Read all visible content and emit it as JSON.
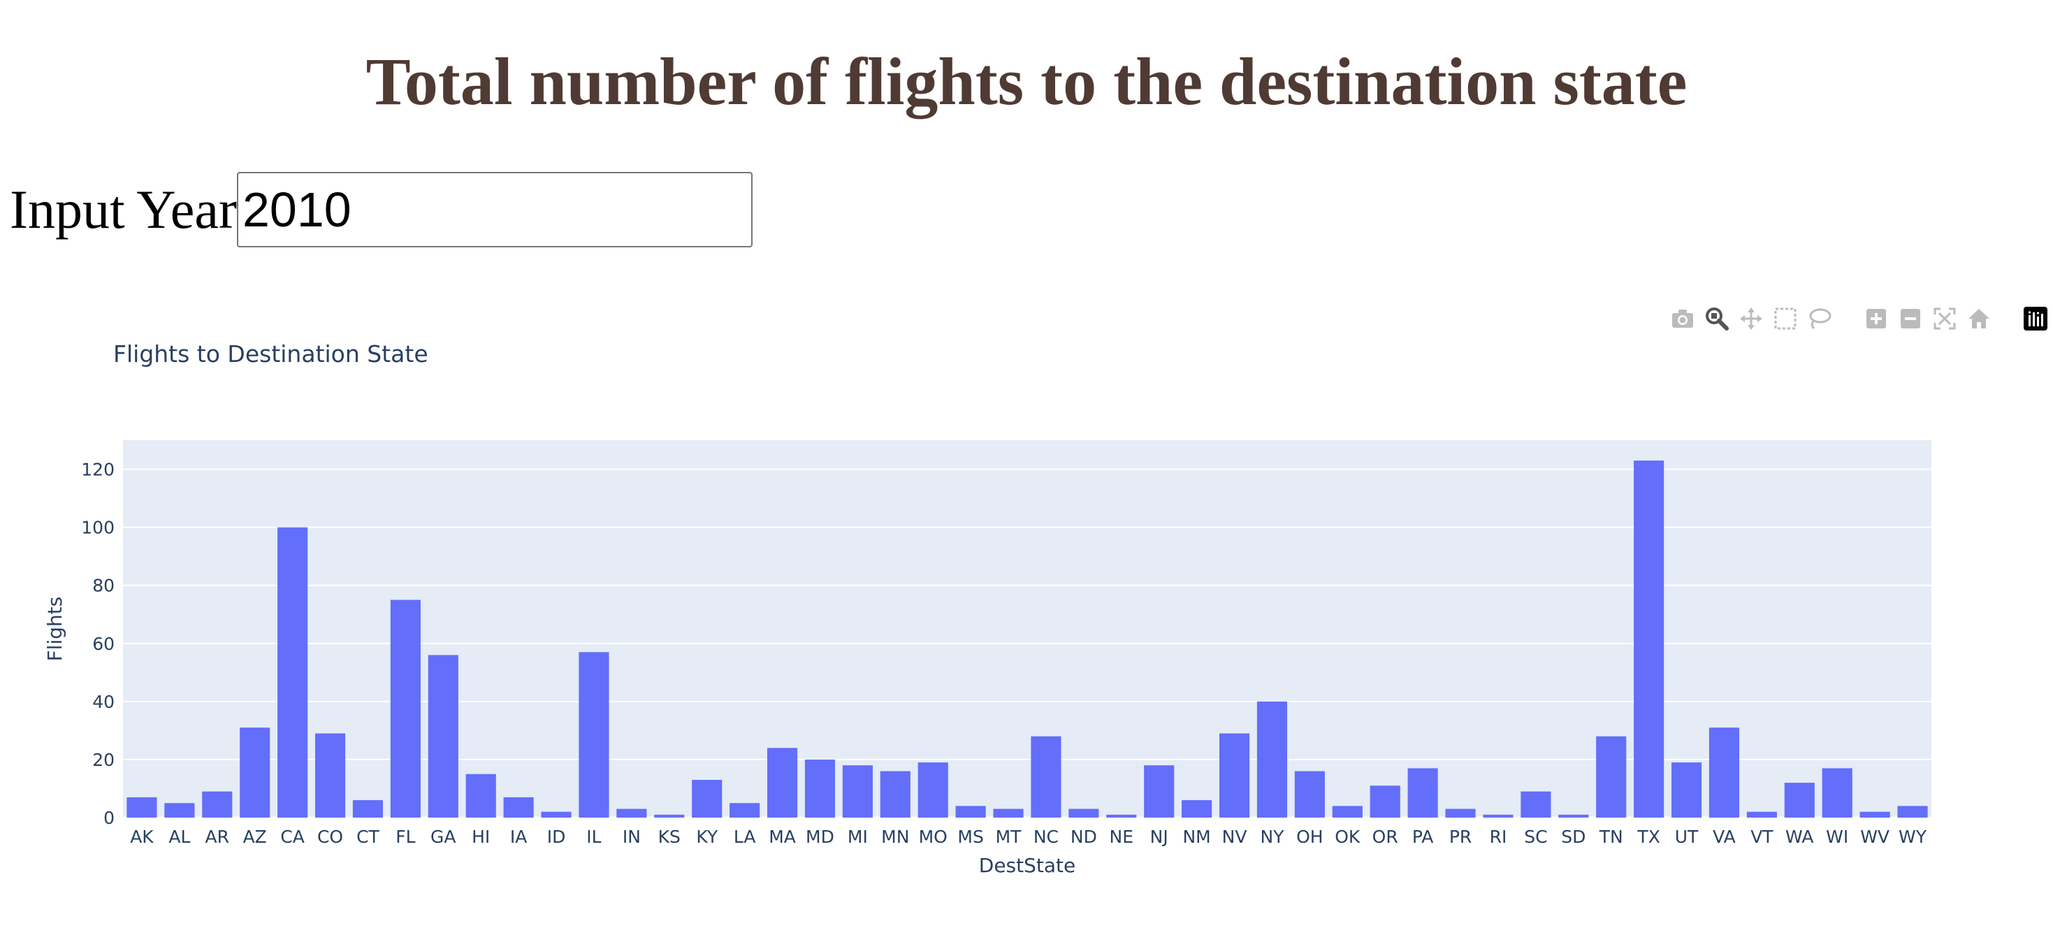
{
  "page": {
    "heading": "Total number of flights to the destination state",
    "year_label": "Input Year",
    "year_value": "2010"
  },
  "modebar": {
    "icons": [
      "camera-icon",
      "zoom-icon",
      "pan-icon",
      "box-select-icon",
      "lasso-select-icon",
      "zoom-in-icon",
      "zoom-out-icon",
      "autoscale-icon",
      "reset-axes-icon",
      "plotly-logo-icon"
    ]
  },
  "colors": {
    "bar": "#636EFA",
    "plot_bg": "#E5ECF6",
    "grid": "#ffffff",
    "text": "#2A3F5F",
    "heading": "#503A34"
  },
  "chart_data": {
    "type": "bar",
    "title": "Flights to Destination State",
    "xlabel": "DestState",
    "ylabel": "Flights",
    "ylim": [
      0,
      130
    ],
    "yticks": [
      0,
      20,
      40,
      60,
      80,
      100,
      120
    ],
    "grid": true,
    "categories": [
      "AK",
      "AL",
      "AR",
      "AZ",
      "CA",
      "CO",
      "CT",
      "FL",
      "GA",
      "HI",
      "IA",
      "ID",
      "IL",
      "IN",
      "KS",
      "KY",
      "LA",
      "MA",
      "MD",
      "MI",
      "MN",
      "MO",
      "MS",
      "MT",
      "NC",
      "ND",
      "NE",
      "NJ",
      "NM",
      "NV",
      "NY",
      "OH",
      "OK",
      "OR",
      "PA",
      "PR",
      "RI",
      "SC",
      "SD",
      "TN",
      "TX",
      "UT",
      "VA",
      "VT",
      "WA",
      "WI",
      "WV",
      "WY"
    ],
    "values": [
      7,
      5,
      9,
      31,
      100,
      29,
      6,
      75,
      56,
      15,
      7,
      2,
      57,
      3,
      1,
      13,
      5,
      24,
      20,
      18,
      16,
      19,
      4,
      3,
      28,
      3,
      1,
      18,
      6,
      29,
      40,
      16,
      4,
      11,
      17,
      3,
      1,
      9,
      1,
      28,
      123,
      19,
      31,
      2,
      12,
      17,
      2,
      4
    ]
  }
}
